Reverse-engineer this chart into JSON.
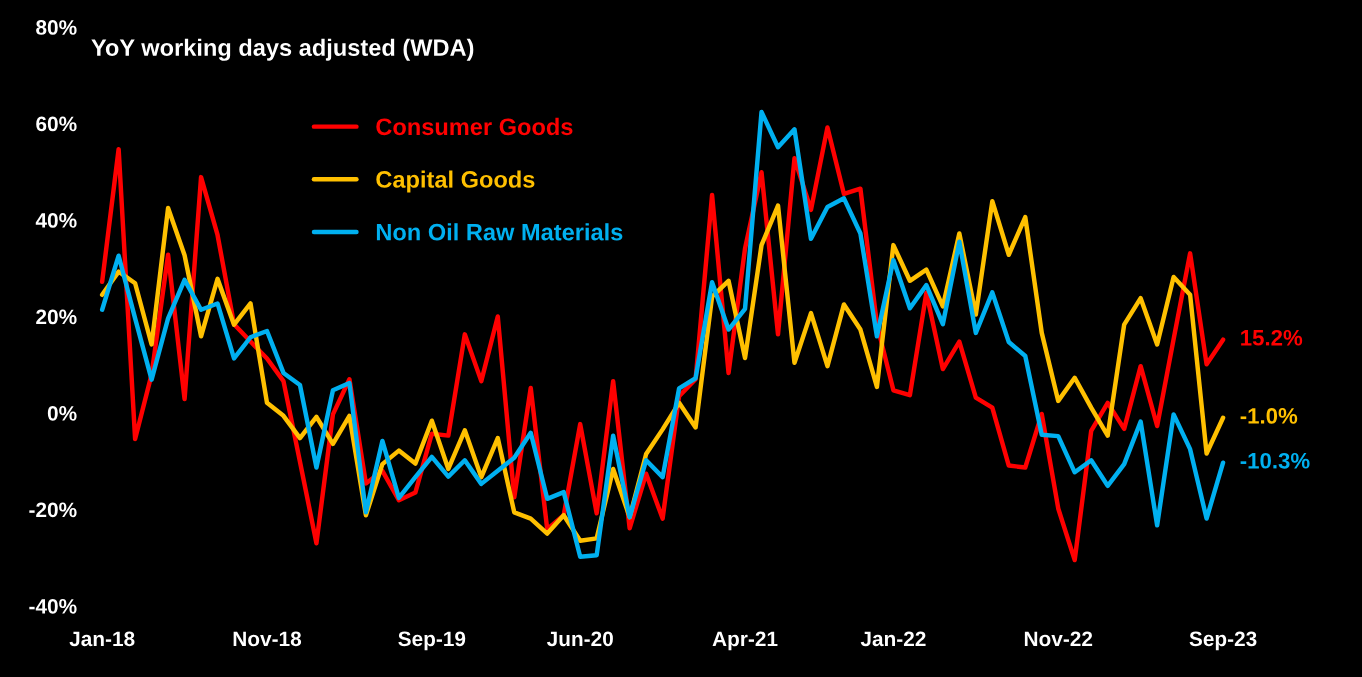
{
  "chart_data": {
    "type": "line",
    "x": [
      "2018-01",
      "2018-02",
      "2018-03",
      "2018-04",
      "2018-05",
      "2018-06",
      "2018-07",
      "2018-08",
      "2018-09",
      "2018-10",
      "2018-11",
      "2018-12",
      "2019-01",
      "2019-02",
      "2019-03",
      "2019-04",
      "2019-05",
      "2019-06",
      "2019-07",
      "2019-08",
      "2019-09",
      "2019-10",
      "2019-11",
      "2019-12",
      "2020-01",
      "2020-02",
      "2020-03",
      "2020-04",
      "2020-05",
      "2020-06",
      "2020-07",
      "2020-08",
      "2020-09",
      "2020-10",
      "2020-11",
      "2020-12",
      "2021-01",
      "2021-02",
      "2021-03",
      "2021-04",
      "2021-05",
      "2021-06",
      "2021-07",
      "2021-08",
      "2021-09",
      "2021-10",
      "2021-11",
      "2021-12",
      "2022-01",
      "2022-02",
      "2022-03",
      "2022-04",
      "2022-05",
      "2022-06",
      "2022-07",
      "2022-08",
      "2022-09",
      "2022-10",
      "2022-11",
      "2022-12",
      "2023-01",
      "2023-02",
      "2023-03",
      "2023-04",
      "2023-05",
      "2023-06",
      "2023-07",
      "2023-08",
      "2023-09"
    ],
    "series": [
      {
        "name": "Consumer Goods",
        "color": "#ff0000",
        "values": [
          27.2,
          54.7,
          -5.4,
          8.0,
          32.8,
          2.9,
          48.9,
          36.9,
          18.4,
          14.8,
          11.3,
          6.6,
          -10.1,
          -27.0,
          -0.3,
          7.0,
          -14.6,
          -12.0,
          -18.1,
          -16.5,
          -4.3,
          -4.7,
          16.3,
          6.6,
          20.0,
          -17.5,
          5.2,
          -24.1,
          -21.2,
          -2.3,
          -20.8,
          6.6,
          -23.9,
          -12.6,
          -21.9,
          3.5,
          7.0,
          45.2,
          8.3,
          34.1,
          49.9,
          16.3,
          52.8,
          42.1,
          59.2,
          45.4,
          46.5,
          18.4,
          4.7,
          3.7,
          24.9,
          9.1,
          14.8,
          3.2,
          1.1,
          -10.9,
          -11.3,
          -0.2,
          -19.8,
          -30.5,
          -3.7,
          2.1,
          -3.3,
          9.7,
          -2.7,
          15.3,
          33.1,
          10.1,
          15.2
        ]
      },
      {
        "name": "Capital Goods",
        "color": "#ffc000",
        "values": [
          24.5,
          29.3,
          26.9,
          14.2,
          42.5,
          32.7,
          15.9,
          27.8,
          18.3,
          22.7,
          2.1,
          -0.6,
          -5.2,
          -0.8,
          -6.4,
          -0.6,
          -21.2,
          -10.6,
          -7.8,
          -10.5,
          -1.6,
          -11.6,
          -3.6,
          -13.3,
          -5.2,
          -20.6,
          -21.9,
          -25.0,
          -21.2,
          -26.5,
          -26.0,
          -11.6,
          -21.6,
          -8.5,
          -3.4,
          2.1,
          -3.0,
          24.1,
          27.4,
          11.4,
          34.8,
          43.0,
          10.4,
          20.7,
          9.7,
          22.5,
          17.3,
          5.4,
          34.8,
          27.4,
          29.7,
          22.1,
          37.2,
          20.4,
          43.9,
          32.8,
          40.6,
          16.6,
          2.5,
          7.3,
          1.1,
          -4.7,
          18.3,
          23.8,
          14.2,
          28.2,
          24.5,
          -8.4,
          -1.0
        ]
      },
      {
        "name": "Non Oil Raw Materials",
        "color": "#00b0f0",
        "values": [
          21.4,
          32.6,
          19.6,
          6.9,
          19.6,
          27.6,
          21.4,
          22.7,
          11.3,
          15.7,
          17.0,
          8.3,
          5.8,
          -11.3,
          4.7,
          6.2,
          -20.6,
          -5.8,
          -17.6,
          -13.3,
          -9.1,
          -13.2,
          -9.8,
          -14.7,
          -12.0,
          -9.3,
          -4.1,
          -17.8,
          -16.4,
          -29.8,
          -29.5,
          -4.7,
          -21.6,
          -9.8,
          -13.3,
          5.1,
          7.2,
          27.1,
          17.3,
          21.6,
          62.4,
          55.1,
          58.8,
          36.1,
          42.7,
          44.5,
          37.2,
          15.9,
          31.7,
          21.7,
          26.5,
          18.4,
          35.5,
          16.6,
          25.0,
          14.7,
          11.8,
          -4.5,
          -4.8,
          -12.3,
          -9.8,
          -15.1,
          -10.6,
          -1.8,
          -23.3,
          -0.3,
          -7.5,
          -21.9,
          -10.3
        ]
      }
    ],
    "annotations": [
      "YoY working days adjusted (WDA)",
      {
        "text": "15.2%",
        "x": "2023-09",
        "y": 15.2
      },
      {
        "text": "-1.0%",
        "x": "2023-09",
        "y": -1.0
      },
      {
        "text": "-10.3%",
        "x": "2023-09",
        "y": -10.3
      }
    ],
    "xlim": [
      "2018-01",
      "2023-09"
    ],
    "xticks": [
      {
        "value": "2018-01",
        "label": "Jan-18"
      },
      {
        "value": "2018-11",
        "label": "Nov-18"
      },
      {
        "value": "2019-09",
        "label": "Sep-19"
      },
      {
        "value": "2020-06",
        "label": "Jun-20"
      },
      {
        "value": "2021-04",
        "label": "Apr-21"
      },
      {
        "value": "2022-01",
        "label": "Jan-22"
      },
      {
        "value": "2022-11",
        "label": "Nov-22"
      },
      {
        "value": "2023-09",
        "label": "Sep-23"
      }
    ],
    "ylim": [
      -40,
      80
    ],
    "yticks": [
      {
        "value": -40,
        "label": "-40%"
      },
      {
        "value": -20,
        "label": "-20%"
      },
      {
        "value": 0,
        "label": "0%"
      },
      {
        "value": 20,
        "label": "20%"
      },
      {
        "value": 40,
        "label": "40%"
      },
      {
        "value": 60,
        "label": "60%"
      },
      {
        "value": 80,
        "label": "80%"
      }
    ],
    "grid": false,
    "legend": "top left",
    "marker": "none",
    "line_style": "solid"
  }
}
